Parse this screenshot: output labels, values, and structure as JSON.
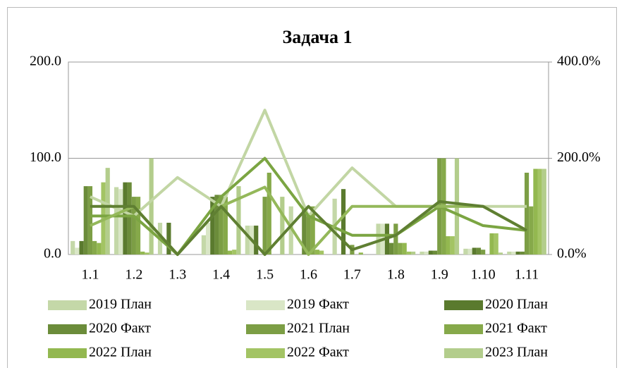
{
  "chart_data": {
    "type": "bar",
    "title": "Задача 1",
    "categories": [
      "1.1",
      "1.2",
      "1.3",
      "1.4",
      "1.5",
      "1.6",
      "1.7",
      "1.8",
      "1.9",
      "1.10",
      "1.11"
    ],
    "ylim": [
      0,
      200
    ],
    "yticks": [
      {
        "value": 0,
        "label": "0.0"
      },
      {
        "value": 100,
        "label": "100.0"
      },
      {
        "value": 200,
        "label": "200.0"
      }
    ],
    "y2lim": [
      0,
      400
    ],
    "y2ticks": [
      {
        "value": 0,
        "label": "0.0%"
      },
      {
        "value": 200,
        "label": "200.0%"
      },
      {
        "value": 400,
        "label": "400.0%"
      }
    ],
    "grid": true,
    "legend": "bottom",
    "series": [
      {
        "name": "2019 План",
        "color": "#c4d8a8",
        "values": [
          14,
          70,
          33,
          20,
          30,
          50,
          58,
          32,
          3,
          6,
          3
        ]
      },
      {
        "name": "2019 Факт",
        "color": "#d9e6c6",
        "values": [
          7,
          68,
          0,
          33,
          30,
          0,
          0,
          32,
          3,
          6,
          3
        ]
      },
      {
        "name": "2020 План",
        "color": "#5a7a2e",
        "values": [
          14,
          75,
          33,
          60,
          30,
          0,
          68,
          32,
          4,
          7,
          3
        ]
      },
      {
        "name": "2020 Факт",
        "color": "#6b8c3a",
        "values": [
          71,
          75,
          0,
          62,
          0,
          50,
          0,
          12,
          4,
          7,
          3
        ]
      },
      {
        "name": "2021 План",
        "color": "#7c9e45",
        "values": [
          71,
          60,
          0,
          62,
          60,
          40,
          10,
          32,
          100,
          5,
          85
        ]
      },
      {
        "name": "2021 Факт",
        "color": "#86a94a",
        "values": [
          14,
          60,
          0,
          60,
          85,
          50,
          0,
          12,
          100,
          0,
          50
        ]
      },
      {
        "name": "2022 План",
        "color": "#93b850",
        "values": [
          12,
          3,
          0,
          4,
          0,
          5,
          2,
          12,
          19,
          22,
          89
        ]
      },
      {
        "name": "2022 Факт",
        "color": "#a3c464",
        "values": [
          75,
          2,
          0,
          5,
          0,
          4,
          0,
          3,
          19,
          22,
          89
        ]
      },
      {
        "name": "2023 План",
        "color": "#b3cd8c",
        "values": [
          90,
          100,
          0,
          71,
          60,
          0,
          0,
          3,
          100,
          2,
          89
        ]
      },
      {
        "type": "line",
        "axis": "y2",
        "color": "#c2d6a4",
        "values": [
          120,
          80,
          160,
          100,
          300,
          80,
          180,
          100,
          100,
          100,
          100
        ]
      },
      {
        "type": "line",
        "axis": "y2",
        "color": "#7ba542",
        "values": [
          80,
          80,
          0,
          120,
          200,
          80,
          40,
          40,
          100,
          60,
          50
        ]
      },
      {
        "type": "line",
        "axis": "y2",
        "color": "#94b85a",
        "values": [
          60,
          100,
          0,
          100,
          140,
          0,
          100,
          100,
          100,
          100,
          50
        ]
      },
      {
        "type": "line",
        "axis": "y2",
        "color": "#5f7f32",
        "values": [
          100,
          100,
          0,
          100,
          0,
          100,
          10,
          40,
          110,
          100,
          50
        ]
      }
    ]
  }
}
